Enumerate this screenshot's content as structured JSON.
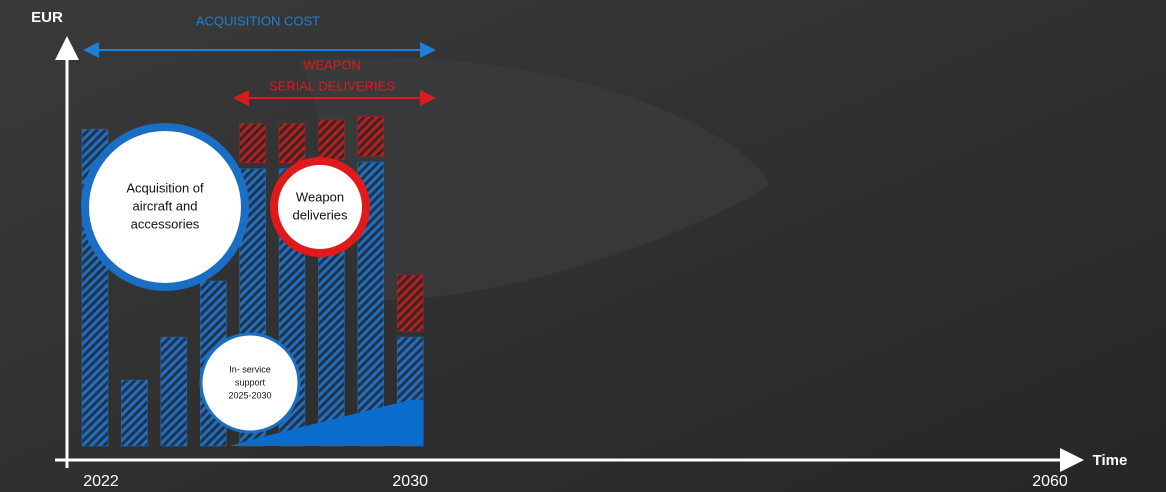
{
  "chart_data": {
    "type": "bar",
    "stacked": true,
    "x_label": "Time",
    "y_label": "EUR",
    "categories": [
      "2022",
      null,
      null,
      null,
      null,
      null,
      null,
      null,
      "2030"
    ],
    "x_end_label": "2060",
    "ylim": [
      0,
      100
    ],
    "series": [
      {
        "color": "#1f6fc1",
        "values": [
          96,
          20,
          33,
          50,
          84,
          84,
          85,
          86,
          33
        ]
      },
      {
        "color": "#b3201f",
        "values": [
          null,
          null,
          null,
          null,
          12,
          12,
          12,
          12,
          17
        ]
      }
    ],
    "area": {
      "color": "#0a6ccc",
      "values": [
        null,
        null,
        null,
        0,
        2,
        5,
        8,
        11,
        14
      ]
    },
    "annotations": [
      {
        "lines": [
          "ACQUISITION  COST"
        ],
        "color": "#1f7fd6"
      },
      {
        "lines": [
          "WEAPON",
          "SERIAL DELIVERIES"
        ],
        "color": "#e0191b"
      }
    ],
    "callouts": [
      {
        "lines": [
          "Acquisition of",
          "aircraft and",
          "accessories"
        ],
        "color": "#1a6fc4"
      },
      {
        "lines": [
          "Weapon",
          "deliveries"
        ],
        "color": "#e01a1a"
      },
      {
        "lines": [
          "In- service",
          "support",
          "2025-2030"
        ],
        "color": "#1a6fc4"
      }
    ]
  }
}
